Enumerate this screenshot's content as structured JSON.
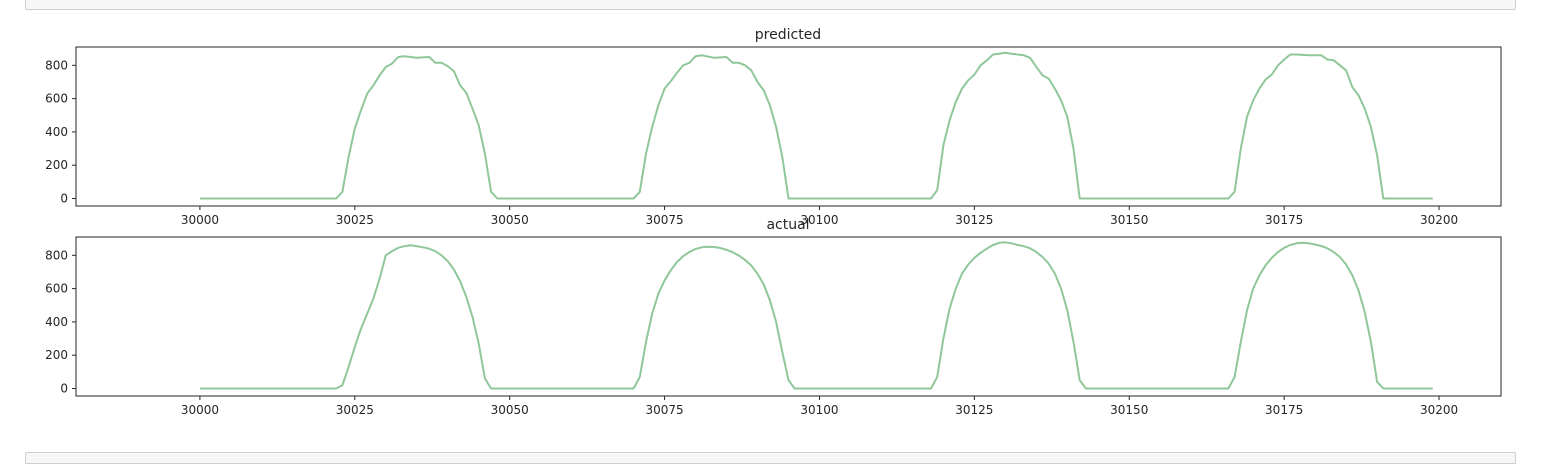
{
  "colors": {
    "line": "#8fc79a",
    "axes": "#262626",
    "cell_border": "#cfcfcf",
    "cell_bg": "#f7f7f7"
  },
  "chart_data": [
    {
      "type": "line",
      "title": "predicted",
      "xlim": [
        29980,
        30210
      ],
      "ylim": [
        -45,
        910
      ],
      "xticks": [
        30000,
        30025,
        30050,
        30075,
        30100,
        30125,
        30150,
        30175,
        30200
      ],
      "yticks": [
        0,
        200,
        400,
        600,
        800
      ],
      "grid": false,
      "series": [
        {
          "values": [
            [
              30000,
              0
            ],
            [
              30022,
              0
            ],
            [
              30023,
              40
            ],
            [
              30024,
              250
            ],
            [
              30025,
              420
            ],
            [
              30026,
              530
            ],
            [
              30027,
              630
            ],
            [
              30028,
              680
            ],
            [
              30029,
              740
            ],
            [
              30030,
              790
            ],
            [
              30031,
              810
            ],
            [
              30032,
              850
            ],
            [
              30033,
              855
            ],
            [
              30035,
              845
            ],
            [
              30037,
              850
            ],
            [
              30038,
              815
            ],
            [
              30039,
              815
            ],
            [
              30040,
              795
            ],
            [
              30041,
              765
            ],
            [
              30042,
              680
            ],
            [
              30043,
              635
            ],
            [
              30044,
              540
            ],
            [
              30045,
              440
            ],
            [
              30046,
              270
            ],
            [
              30047,
              40
            ],
            [
              30048,
              0
            ],
            [
              30070,
              0
            ],
            [
              30071,
              40
            ],
            [
              30072,
              270
            ],
            [
              30073,
              430
            ],
            [
              30074,
              560
            ],
            [
              30075,
              660
            ],
            [
              30076,
              705
            ],
            [
              30077,
              755
            ],
            [
              30078,
              800
            ],
            [
              30079,
              815
            ],
            [
              30080,
              855
            ],
            [
              30081,
              860
            ],
            [
              30083,
              845
            ],
            [
              30085,
              850
            ],
            [
              30086,
              815
            ],
            [
              30087,
              815
            ],
            [
              30088,
              800
            ],
            [
              30089,
              770
            ],
            [
              30090,
              700
            ],
            [
              30091,
              650
            ],
            [
              30092,
              560
            ],
            [
              30093,
              430
            ],
            [
              30094,
              250
            ],
            [
              30095,
              0
            ],
            [
              30118,
              0
            ],
            [
              30119,
              50
            ],
            [
              30120,
              320
            ],
            [
              30121,
              470
            ],
            [
              30122,
              580
            ],
            [
              30123,
              660
            ],
            [
              30124,
              710
            ],
            [
              30125,
              745
            ],
            [
              30126,
              800
            ],
            [
              30127,
              830
            ],
            [
              30128,
              865
            ],
            [
              30129,
              870
            ],
            [
              30130,
              875
            ],
            [
              30131,
              870
            ],
            [
              30132,
              865
            ],
            [
              30133,
              860
            ],
            [
              30134,
              845
            ],
            [
              30135,
              790
            ],
            [
              30136,
              740
            ],
            [
              30137,
              720
            ],
            [
              30138,
              660
            ],
            [
              30139,
              590
            ],
            [
              30140,
              490
            ],
            [
              30141,
              300
            ],
            [
              30142,
              0
            ],
            [
              30166,
              0
            ],
            [
              30167,
              40
            ],
            [
              30168,
              300
            ],
            [
              30169,
              490
            ],
            [
              30170,
              590
            ],
            [
              30171,
              660
            ],
            [
              30172,
              715
            ],
            [
              30173,
              745
            ],
            [
              30174,
              800
            ],
            [
              30175,
              835
            ],
            [
              30176,
              865
            ],
            [
              30177,
              865
            ],
            [
              30179,
              860
            ],
            [
              30181,
              860
            ],
            [
              30182,
              835
            ],
            [
              30183,
              830
            ],
            [
              30184,
              800
            ],
            [
              30185,
              770
            ],
            [
              30186,
              670
            ],
            [
              30187,
              620
            ],
            [
              30188,
              540
            ],
            [
              30189,
              430
            ],
            [
              30190,
              260
            ],
            [
              30191,
              0
            ],
            [
              30199,
              0
            ]
          ]
        }
      ]
    },
    {
      "type": "line",
      "title": "actual",
      "xlim": [
        29980,
        30210
      ],
      "ylim": [
        -45,
        910
      ],
      "xticks": [
        30000,
        30025,
        30050,
        30075,
        30100,
        30125,
        30150,
        30175,
        30200
      ],
      "yticks": [
        0,
        200,
        400,
        600,
        800
      ],
      "grid": false,
      "series": [
        {
          "values": [
            [
              30000,
              0
            ],
            [
              30022,
              0
            ],
            [
              30023,
              20
            ],
            [
              30024,
              130
            ],
            [
              30025,
              250
            ],
            [
              30026,
              360
            ],
            [
              30027,
              450
            ],
            [
              30028,
              540
            ],
            [
              30029,
              660
            ],
            [
              30030,
              800
            ],
            [
              30031,
              825
            ],
            [
              30032,
              845
            ],
            [
              30033,
              855
            ],
            [
              30034,
              860
            ],
            [
              30035,
              855
            ],
            [
              30036,
              848
            ],
            [
              30037,
              840
            ],
            [
              30038,
              825
            ],
            [
              30039,
              800
            ],
            [
              30040,
              765
            ],
            [
              30041,
              715
            ],
            [
              30042,
              645
            ],
            [
              30043,
              550
            ],
            [
              30044,
              430
            ],
            [
              30045,
              270
            ],
            [
              30046,
              60
            ],
            [
              30047,
              0
            ],
            [
              30070,
              0
            ],
            [
              30071,
              70
            ],
            [
              30072,
              280
            ],
            [
              30073,
              450
            ],
            [
              30074,
              570
            ],
            [
              30075,
              650
            ],
            [
              30076,
              710
            ],
            [
              30077,
              760
            ],
            [
              30078,
              795
            ],
            [
              30079,
              820
            ],
            [
              30080,
              838
            ],
            [
              30081,
              848
            ],
            [
              30082,
              852
            ],
            [
              30083,
              850
            ],
            [
              30084,
              844
            ],
            [
              30085,
              833
            ],
            [
              30086,
              818
            ],
            [
              30087,
              798
            ],
            [
              30088,
              772
            ],
            [
              30089,
              738
            ],
            [
              30090,
              690
            ],
            [
              30091,
              625
            ],
            [
              30092,
              530
            ],
            [
              30093,
              400
            ],
            [
              30094,
              220
            ],
            [
              30095,
              50
            ],
            [
              30096,
              0
            ],
            [
              30118,
              0
            ],
            [
              30119,
              70
            ],
            [
              30120,
              300
            ],
            [
              30121,
              480
            ],
            [
              30122,
              600
            ],
            [
              30123,
              690
            ],
            [
              30124,
              745
            ],
            [
              30125,
              785
            ],
            [
              30126,
              815
            ],
            [
              30127,
              840
            ],
            [
              30128,
              862
            ],
            [
              30129,
              875
            ],
            [
              30130,
              878
            ],
            [
              30131,
              872
            ],
            [
              30132,
              862
            ],
            [
              30133,
              855
            ],
            [
              30134,
              842
            ],
            [
              30135,
              820
            ],
            [
              30136,
              790
            ],
            [
              30137,
              750
            ],
            [
              30138,
              690
            ],
            [
              30139,
              600
            ],
            [
              30140,
              470
            ],
            [
              30141,
              280
            ],
            [
              30142,
              50
            ],
            [
              30143,
              0
            ],
            [
              30166,
              0
            ],
            [
              30167,
              70
            ],
            [
              30168,
              280
            ],
            [
              30169,
              470
            ],
            [
              30170,
              600
            ],
            [
              30171,
              680
            ],
            [
              30172,
              740
            ],
            [
              30173,
              785
            ],
            [
              30174,
              820
            ],
            [
              30175,
              845
            ],
            [
              30176,
              862
            ],
            [
              30177,
              872
            ],
            [
              30178,
              876
            ],
            [
              30179,
              872
            ],
            [
              30180,
              865
            ],
            [
              30181,
              856
            ],
            [
              30182,
              842
            ],
            [
              30183,
              820
            ],
            [
              30184,
              790
            ],
            [
              30185,
              745
            ],
            [
              30186,
              680
            ],
            [
              30187,
              590
            ],
            [
              30188,
              460
            ],
            [
              30189,
              280
            ],
            [
              30190,
              40
            ],
            [
              30191,
              0
            ],
            [
              30199,
              0
            ]
          ]
        }
      ]
    }
  ]
}
